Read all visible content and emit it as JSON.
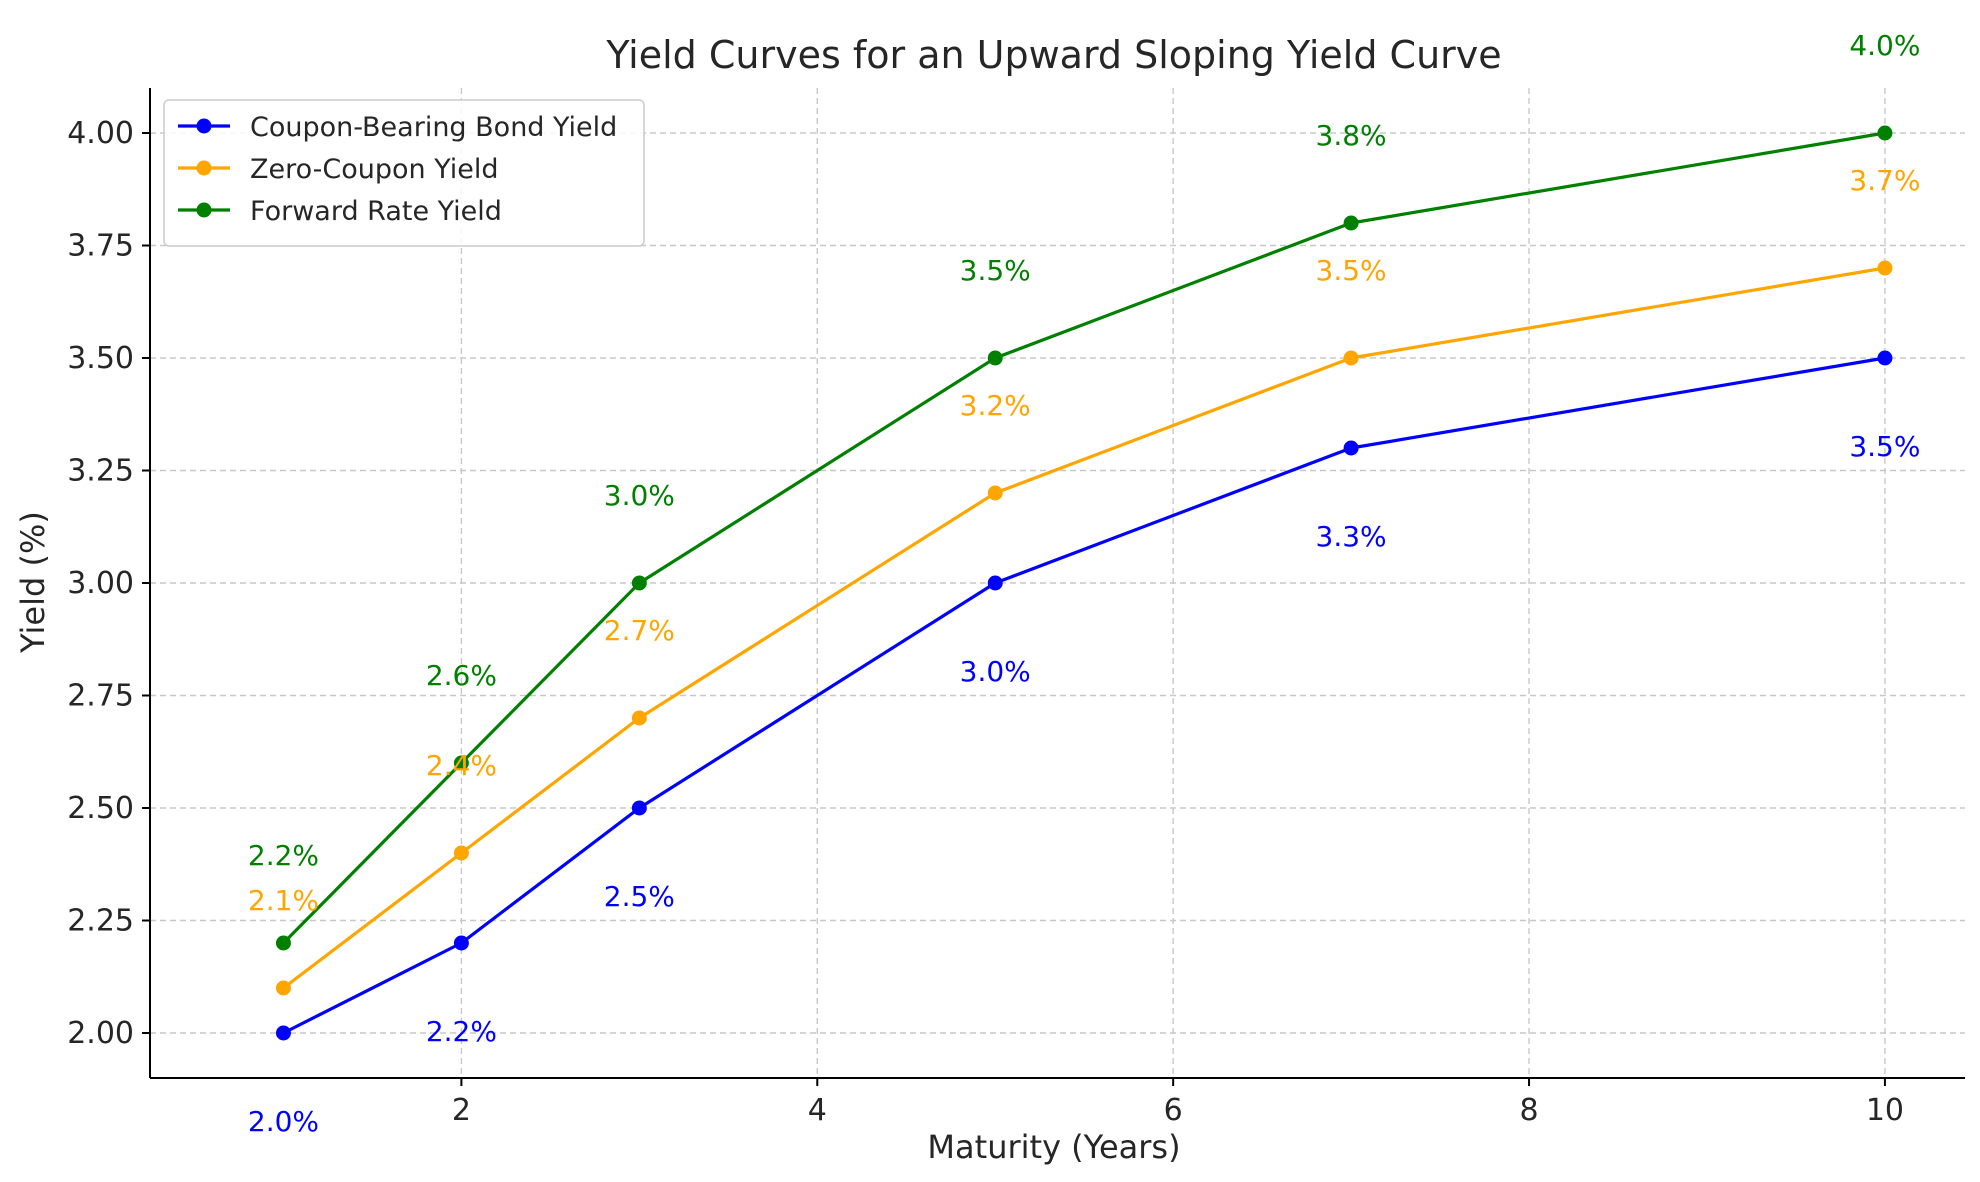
{
  "chart_data": {
    "type": "line",
    "title": "Yield Curves for an Upward Sloping Yield Curve",
    "xlabel": "Maturity (Years)",
    "ylabel": "Yield (%)",
    "x": [
      1,
      2,
      3,
      5,
      7,
      10
    ],
    "xlim": [
      0.25,
      10.45
    ],
    "ylim": [
      1.9,
      4.1
    ],
    "xticks": [
      2,
      4,
      6,
      8,
      10
    ],
    "xtick_labels": [
      "2",
      "4",
      "6",
      "8",
      "10"
    ],
    "yticks": [
      2.0,
      2.25,
      2.5,
      2.75,
      3.0,
      3.25,
      3.5,
      3.75,
      4.0
    ],
    "ytick_labels": [
      "2.00",
      "2.25",
      "2.50",
      "2.75",
      "3.00",
      "3.25",
      "3.50",
      "3.75",
      "4.00"
    ],
    "grid": true,
    "legend_position": "top-left",
    "series": [
      {
        "name": "Coupon-Bearing Bond Yield",
        "color": "#0000ff",
        "values": [
          2.0,
          2.2,
          2.5,
          3.0,
          3.3,
          3.5
        ],
        "labels": [
          "2.0%",
          "2.2%",
          "2.5%",
          "3.0%",
          "3.3%",
          "3.5%"
        ],
        "label_placement": "below"
      },
      {
        "name": "Zero-Coupon Yield",
        "color": "#ffa500",
        "values": [
          2.1,
          2.4,
          2.7,
          3.2,
          3.5,
          3.7
        ],
        "labels": [
          "2.1%",
          "2.4%",
          "2.7%",
          "3.2%",
          "3.5%",
          "3.7%"
        ],
        "label_placement": "above"
      },
      {
        "name": "Forward Rate Yield",
        "color": "#008000",
        "values": [
          2.2,
          2.6,
          3.0,
          3.5,
          3.8,
          4.0
        ],
        "labels": [
          "2.2%",
          "2.6%",
          "3.0%",
          "3.5%",
          "3.8%",
          "4.0%"
        ],
        "label_placement": "above"
      }
    ]
  }
}
